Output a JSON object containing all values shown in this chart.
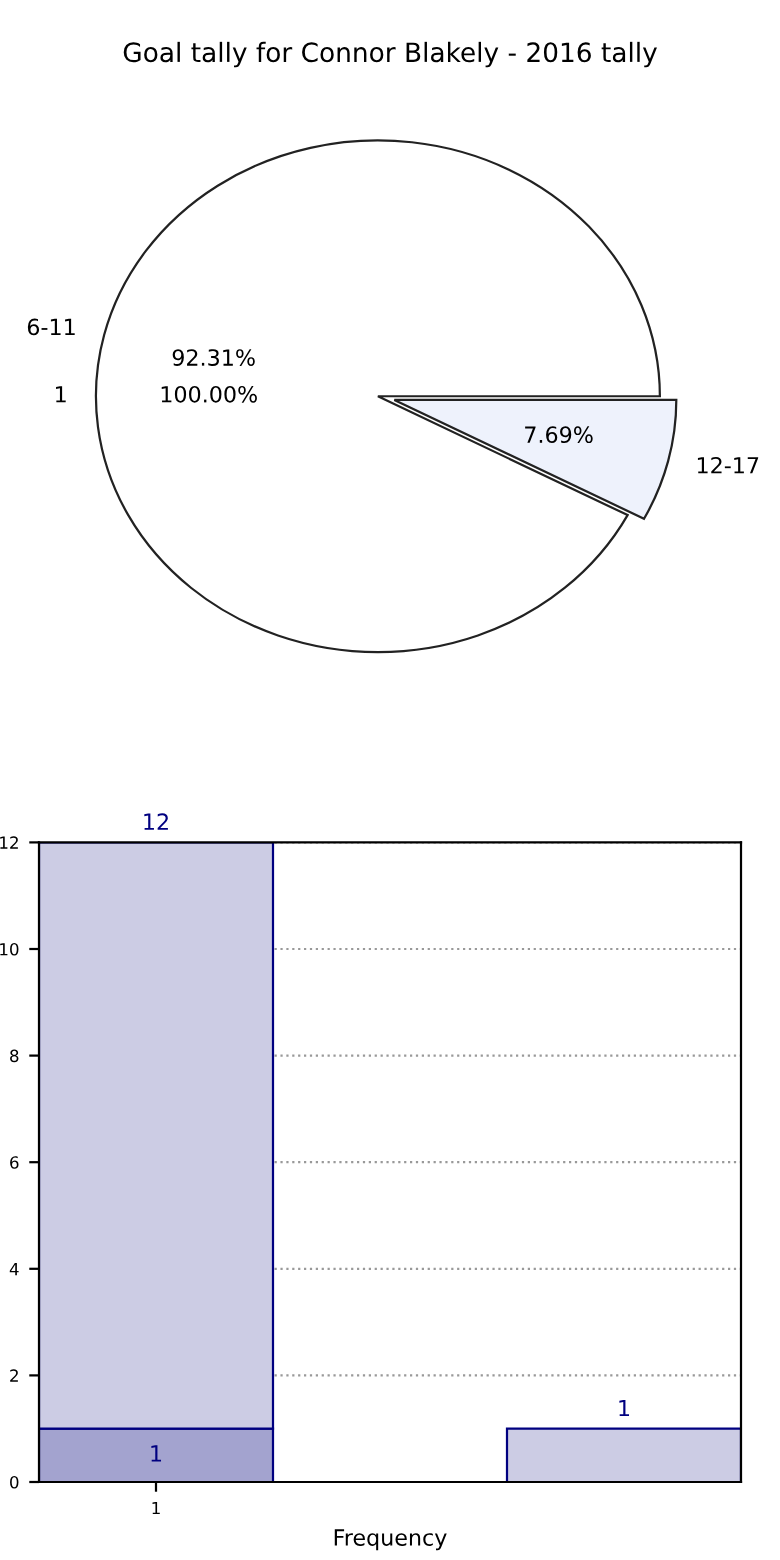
{
  "chart_data": [
    {
      "type": "pie",
      "title": "Goal tally for Connor Blakely - 2016 tally",
      "categories": [
        "6-11",
        "12-17"
      ],
      "values": [
        92.31,
        7.69
      ],
      "colors": [
        "#ffffff",
        "#eef2fc"
      ],
      "value_labels": [
        "92.31%",
        "7.69%"
      ],
      "annotations": [
        "1",
        "100.00%"
      ]
    },
    {
      "type": "bar",
      "stacked": true,
      "categories": [
        "1",
        null,
        null
      ],
      "xlabel": "Frequency",
      "ylim": [
        0,
        12
      ],
      "yticks": [
        0,
        2,
        4,
        6,
        8,
        10,
        12
      ],
      "grid": true,
      "totals": [
        "12",
        null,
        null
      ],
      "series": [
        {
          "color": "#a3a3cf",
          "values": [
            1,
            null,
            null
          ],
          "value_labels": [
            "1",
            null,
            null
          ]
        },
        {
          "color": "#cccce4",
          "values": [
            11,
            null,
            1
          ],
          "value_labels": [
            null,
            null,
            "1"
          ]
        }
      ]
    }
  ]
}
